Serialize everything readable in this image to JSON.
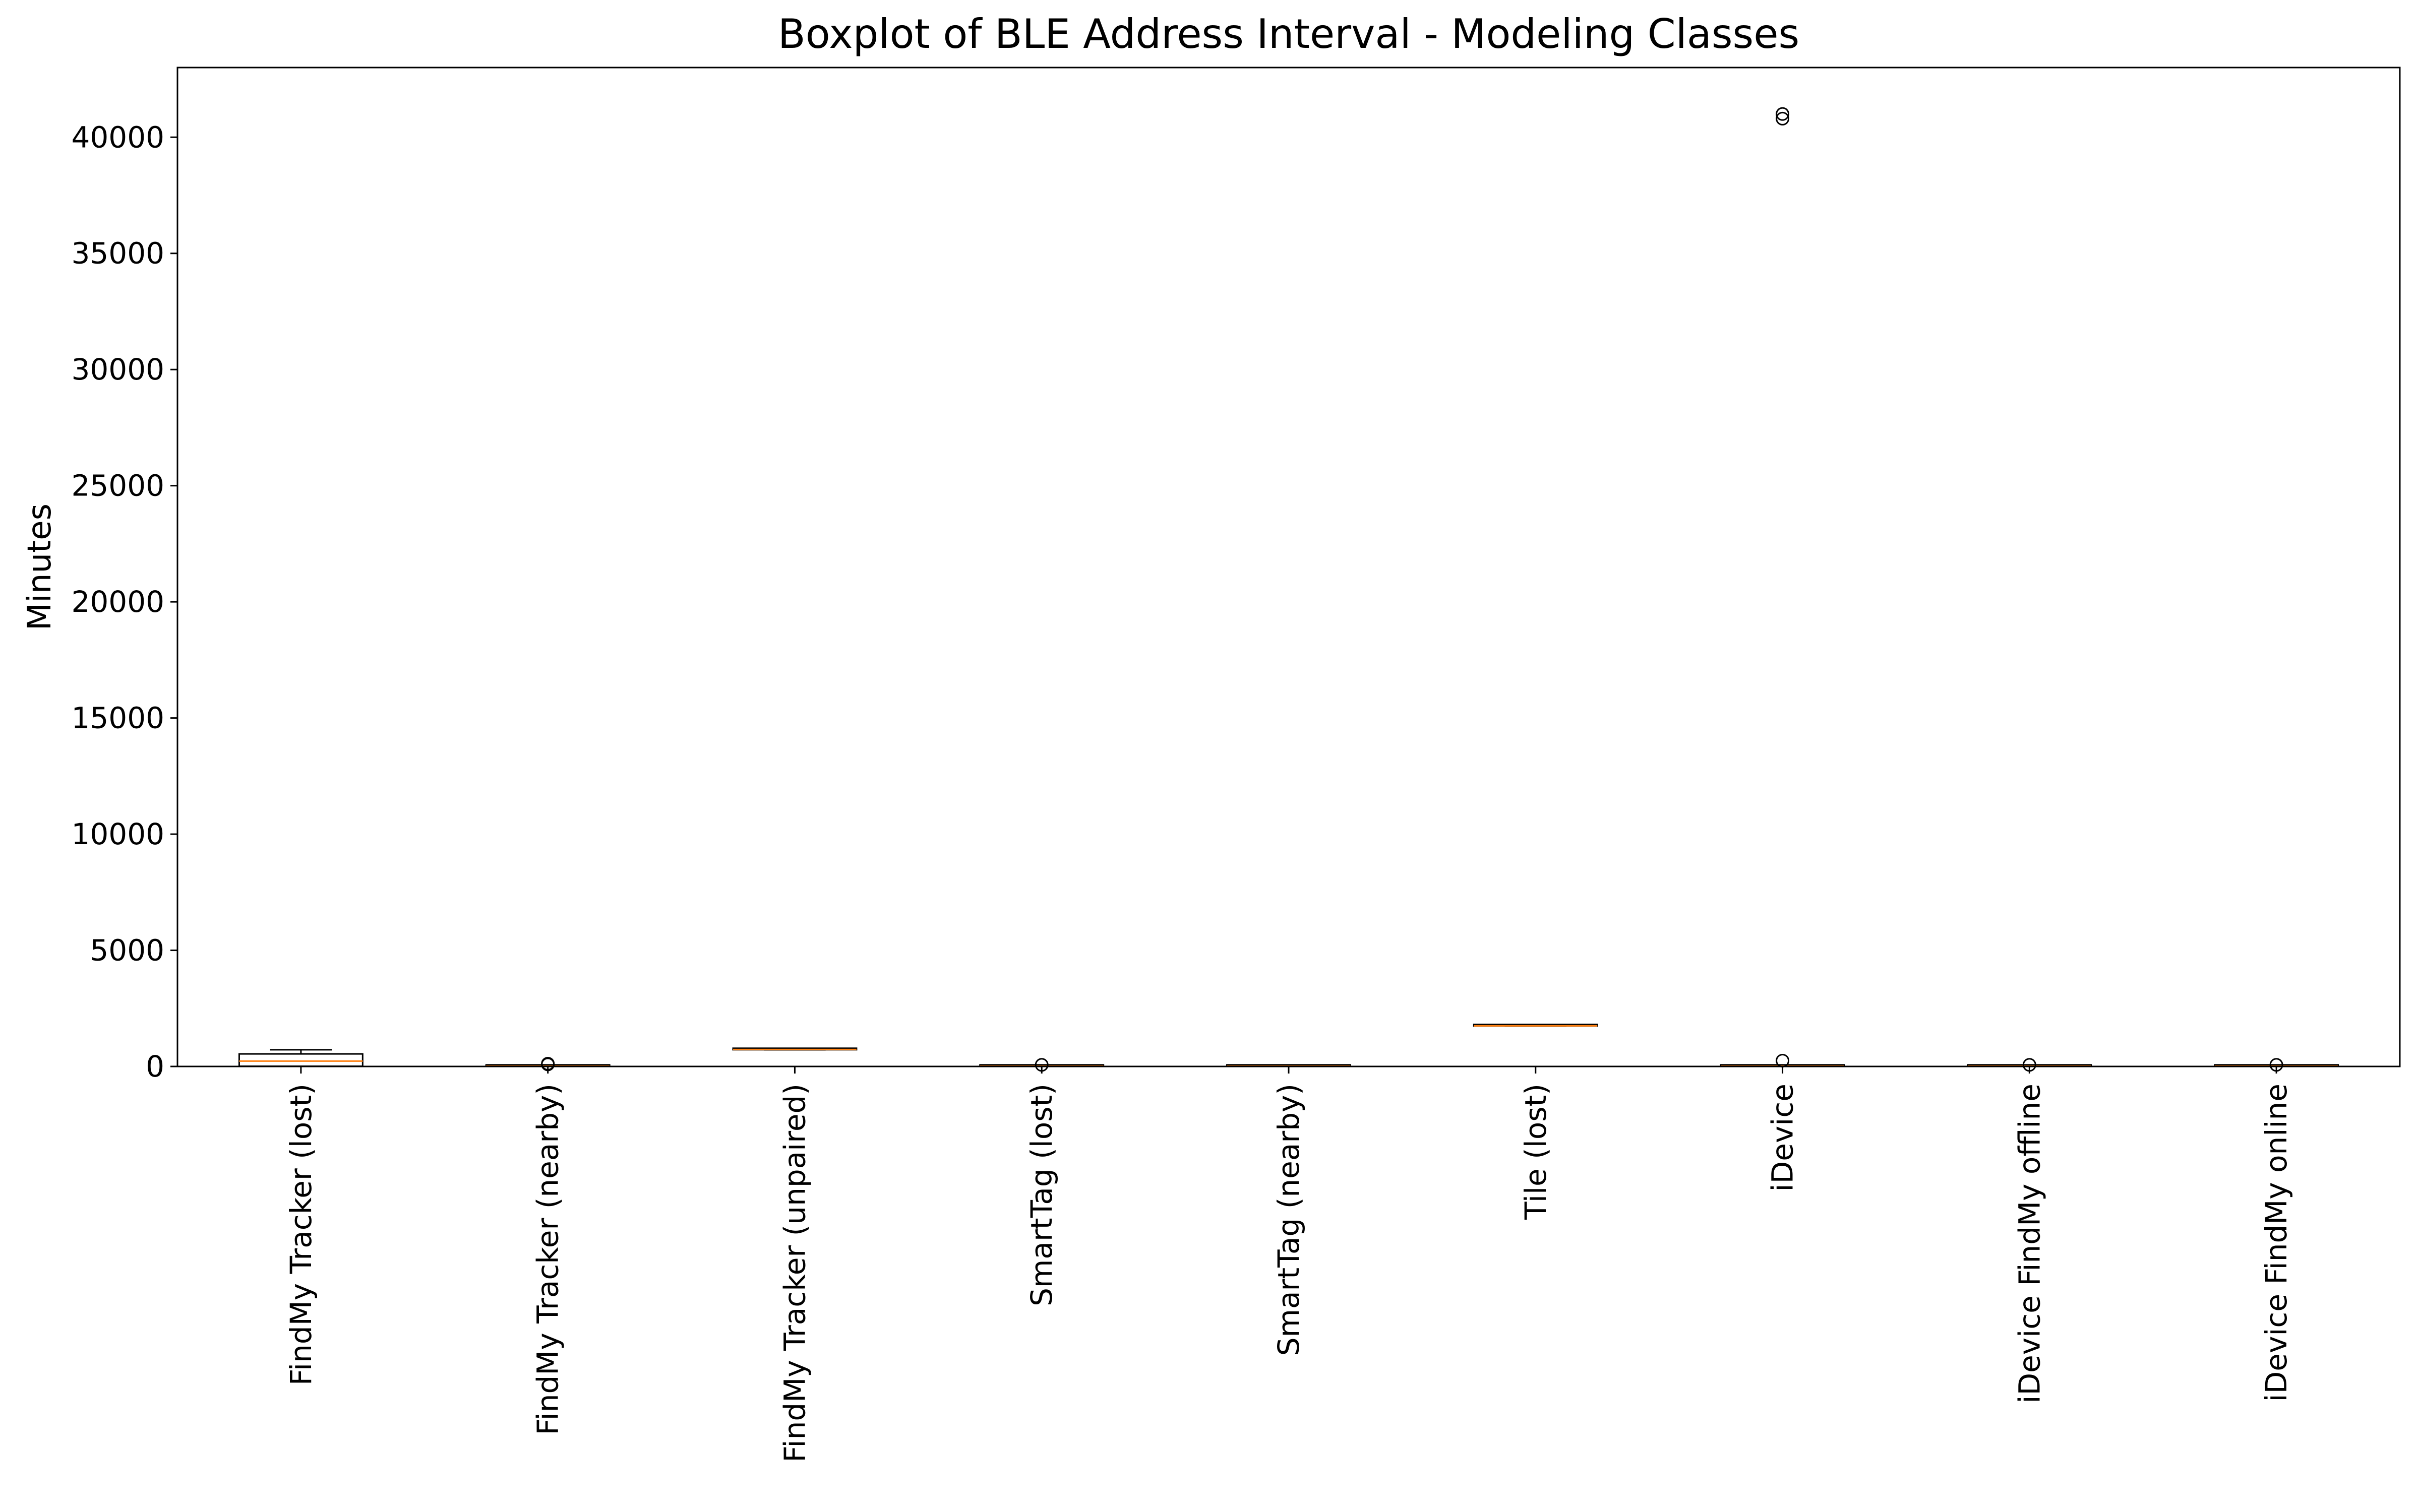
{
  "chart_data": {
    "type": "boxplot",
    "title": "Boxplot of BLE Address Interval - Modeling Classes",
    "xlabel": "",
    "ylabel": "Minutes",
    "ylim": [
      0,
      43000
    ],
    "yticks": [
      0,
      5000,
      10000,
      15000,
      20000,
      25000,
      30000,
      35000,
      40000
    ],
    "ytick_labels": [
      "0",
      "5000",
      "10000",
      "15000",
      "20000",
      "25000",
      "30000",
      "35000",
      "40000"
    ],
    "grid": false,
    "legend": "none",
    "categories": [
      "FindMy Tracker (lost)",
      "FindMy Tracker (nearby)",
      "FindMy Tracker (unpaired)",
      "SmartTag (lost)",
      "SmartTag (nearby)",
      "Tile (lost)",
      "iDevice",
      "iDevice FindMy offline",
      "iDevice FindMy online"
    ],
    "boxes": [
      {
        "category": "FindMy Tracker (lost)",
        "whisker_low": 0,
        "q1": 10,
        "median": 230,
        "q3": 540,
        "whisker_high": 720,
        "outliers": []
      },
      {
        "category": "FindMy Tracker (nearby)",
        "whisker_low": 0,
        "q1": 5,
        "median": 15,
        "q3": 25,
        "whisker_high": 40,
        "outliers": [
          90,
          120
        ]
      },
      {
        "category": "FindMy Tracker (unpaired)",
        "whisker_low": 720,
        "q1": 720,
        "median": 730,
        "q3": 740,
        "whisker_high": 750,
        "outliers": []
      },
      {
        "category": "SmartTag (lost)",
        "whisker_low": 0,
        "q1": 5,
        "median": 15,
        "q3": 20,
        "whisker_high": 30,
        "outliers": [
          70
        ]
      },
      {
        "category": "SmartTag (nearby)",
        "whisker_low": 0,
        "q1": 5,
        "median": 15,
        "q3": 20,
        "whisker_high": 30,
        "outliers": []
      },
      {
        "category": "Tile (lost)",
        "whisker_low": 1740,
        "q1": 1745,
        "median": 1750,
        "q3": 1755,
        "whisker_high": 1760,
        "outliers": []
      },
      {
        "category": "iDevice",
        "whisker_low": 0,
        "q1": 5,
        "median": 15,
        "q3": 25,
        "whisker_high": 40,
        "outliers": [
          250,
          40800,
          41000
        ]
      },
      {
        "category": "iDevice FindMy offline",
        "whisker_low": 0,
        "q1": 5,
        "median": 15,
        "q3": 20,
        "whisker_high": 30,
        "outliers": [
          70
        ]
      },
      {
        "category": "iDevice FindMy online",
        "whisker_low": 0,
        "q1": 5,
        "median": 15,
        "q3": 20,
        "whisker_high": 30,
        "outliers": [
          70
        ]
      }
    ],
    "colors": {
      "box": "#000000",
      "median": "#ff7f0e",
      "outlier": "#000000",
      "background": "#ffffff"
    }
  }
}
